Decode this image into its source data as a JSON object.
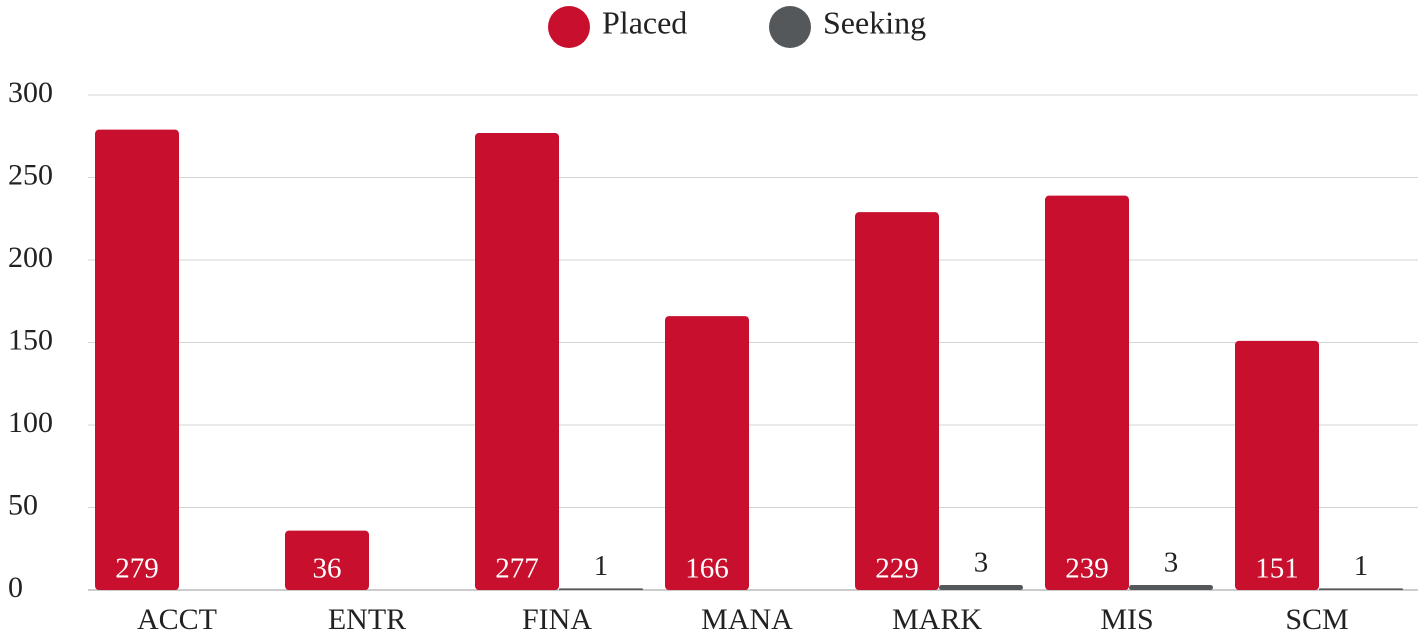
{
  "chart_data": {
    "type": "bar",
    "categories": [
      "ACCT",
      "ENTR",
      "FINA",
      "MANA",
      "MARK",
      "MIS",
      "SCM"
    ],
    "series": [
      {
        "name": "Placed",
        "color": "#c8102e",
        "values": [
          279,
          36,
          277,
          166,
          229,
          239,
          151
        ]
      },
      {
        "name": "Seeking",
        "color": "#54585a",
        "values": [
          null,
          null,
          1,
          null,
          3,
          3,
          1
        ]
      }
    ],
    "ylim": [
      0,
      300
    ],
    "yticks": [
      0,
      50,
      100,
      150,
      200,
      250,
      300
    ],
    "grid": true,
    "legend": "top"
  }
}
